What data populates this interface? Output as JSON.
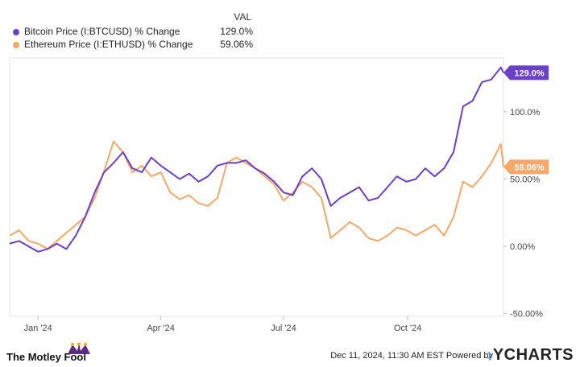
{
  "legend": {
    "header": "VAL",
    "items": [
      {
        "label": "Bitcoin Price (I:BTCUSD) % Change",
        "value": "129.0%",
        "color": "#6b3fc8"
      },
      {
        "label": "Ethereum Price (I:ETHUSD) % Change",
        "value": "59.06%",
        "color": "#f5a86a"
      }
    ]
  },
  "footer": {
    "logo": "The Motley Fool",
    "date": "Dec 11, 2024, 11:30 AM EST",
    "powered_by": "Powered by",
    "brand": "YCHARTS"
  },
  "chart_data": {
    "type": "line",
    "y_ticks": [
      "100.0%",
      "50.00%",
      "0.00%",
      "-50.00%"
    ],
    "y_tick_values": [
      100,
      50,
      0,
      -50
    ],
    "x_ticks": [
      "Jan '24",
      "Apr '24",
      "Jul '24",
      "Oct '24"
    ],
    "x_tick_dates": [
      "2024-01-01",
      "2024-04-01",
      "2024-07-01",
      "2024-10-01"
    ],
    "ylim": [
      -52,
      140
    ],
    "xlim": [
      "2023-12-11",
      "2024-12-11"
    ],
    "grid": false,
    "series": [
      {
        "name": "Bitcoin Price (I:BTCUSD) % Change",
        "color": "#6b3fc8",
        "end_label": "129.0%",
        "x": [
          "2023-12-11",
          "2023-12-18",
          "2023-12-25",
          "2024-01-01",
          "2024-01-08",
          "2024-01-15",
          "2024-01-22",
          "2024-01-29",
          "2024-02-05",
          "2024-02-12",
          "2024-02-19",
          "2024-02-26",
          "2024-03-04",
          "2024-03-11",
          "2024-03-18",
          "2024-03-25",
          "2024-04-01",
          "2024-04-08",
          "2024-04-15",
          "2024-04-22",
          "2024-04-29",
          "2024-05-06",
          "2024-05-13",
          "2024-05-20",
          "2024-05-27",
          "2024-06-03",
          "2024-06-10",
          "2024-06-17",
          "2024-06-24",
          "2024-07-01",
          "2024-07-08",
          "2024-07-15",
          "2024-07-22",
          "2024-07-29",
          "2024-08-05",
          "2024-08-12",
          "2024-08-19",
          "2024-08-26",
          "2024-09-02",
          "2024-09-09",
          "2024-09-16",
          "2024-09-23",
          "2024-09-30",
          "2024-10-07",
          "2024-10-14",
          "2024-10-21",
          "2024-10-28",
          "2024-11-04",
          "2024-11-11",
          "2024-11-18",
          "2024-11-25",
          "2024-12-02",
          "2024-12-09",
          "2024-12-11"
        ],
        "y": [
          2,
          4,
          0,
          -4,
          -2,
          2,
          -2,
          8,
          22,
          40,
          55,
          62,
          70,
          58,
          55,
          66,
          60,
          55,
          50,
          54,
          48,
          52,
          60,
          62,
          62,
          64,
          58,
          54,
          48,
          40,
          38,
          52,
          58,
          50,
          30,
          36,
          40,
          44,
          34,
          36,
          44,
          52,
          48,
          50,
          58,
          52,
          58,
          70,
          104,
          108,
          122,
          124,
          133,
          129
        ]
      },
      {
        "name": "Ethereum Price (I:ETHUSD) % Change",
        "color": "#f5a86a",
        "end_label": "59.06%",
        "x": [
          "2023-12-11",
          "2023-12-18",
          "2023-12-25",
          "2024-01-01",
          "2024-01-08",
          "2024-01-15",
          "2024-01-22",
          "2024-01-29",
          "2024-02-05",
          "2024-02-12",
          "2024-02-19",
          "2024-02-26",
          "2024-03-04",
          "2024-03-11",
          "2024-03-18",
          "2024-03-25",
          "2024-04-01",
          "2024-04-08",
          "2024-04-15",
          "2024-04-22",
          "2024-04-29",
          "2024-05-06",
          "2024-05-13",
          "2024-05-20",
          "2024-05-27",
          "2024-06-03",
          "2024-06-10",
          "2024-06-17",
          "2024-06-24",
          "2024-07-01",
          "2024-07-08",
          "2024-07-15",
          "2024-07-22",
          "2024-07-29",
          "2024-08-05",
          "2024-08-12",
          "2024-08-19",
          "2024-08-26",
          "2024-09-02",
          "2024-09-09",
          "2024-09-16",
          "2024-09-23",
          "2024-09-30",
          "2024-10-07",
          "2024-10-14",
          "2024-10-21",
          "2024-10-28",
          "2024-11-04",
          "2024-11-11",
          "2024-11-18",
          "2024-11-25",
          "2024-12-02",
          "2024-12-09",
          "2024-12-11"
        ],
        "y": [
          8,
          12,
          4,
          2,
          -2,
          4,
          10,
          16,
          22,
          36,
          56,
          78,
          70,
          55,
          60,
          52,
          55,
          40,
          35,
          38,
          32,
          30,
          36,
          62,
          66,
          62,
          58,
          52,
          46,
          34,
          40,
          48,
          44,
          36,
          6,
          12,
          18,
          14,
          6,
          4,
          8,
          14,
          12,
          8,
          12,
          16,
          8,
          22,
          48,
          44,
          52,
          62,
          76,
          59.06
        ]
      }
    ]
  }
}
